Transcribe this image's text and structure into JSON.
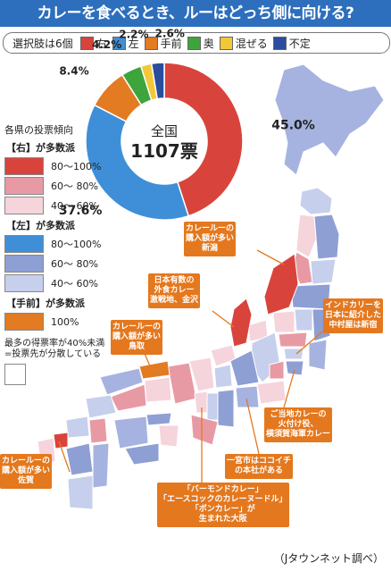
{
  "title": "カレーを食べるとき、ルーはどっち側に向ける?",
  "choices_lead": "選択肢は6個",
  "choices": [
    {
      "label": "右",
      "color": "#d8443c"
    },
    {
      "label": "左",
      "color": "#3f8fd8"
    },
    {
      "label": "手前",
      "color": "#e37b22"
    },
    {
      "label": "奥",
      "color": "#3ea43c"
    },
    {
      "label": "混ぜる",
      "color": "#f2c838"
    },
    {
      "label": "不定",
      "color": "#2a4d9e"
    }
  ],
  "chart_data": {
    "type": "pie",
    "center_label": "全国",
    "center_value": "1107票",
    "slices": [
      {
        "label": "右",
        "value": 45.0,
        "text": "45.0%",
        "color": "#d8443c"
      },
      {
        "label": "左",
        "value": 37.6,
        "text": "37.6%",
        "color": "#3f8fd8"
      },
      {
        "label": "手前",
        "value": 8.4,
        "text": "8.4%",
        "color": "#e37b22"
      },
      {
        "label": "奥",
        "value": 4.2,
        "text": "4.2%",
        "color": "#3ea43c"
      },
      {
        "label": "混ぜる",
        "value": 2.2,
        "text": "2.2%",
        "color": "#f2c838"
      },
      {
        "label": "不定",
        "value": 2.6,
        "text": "2.6%",
        "color": "#2a4d9e"
      }
    ]
  },
  "legend": {
    "heading": "各県の投票傾向",
    "groups": [
      {
        "title": "【右】が多数派",
        "rows": [
          {
            "label": "80〜100%",
            "color": "#d8443c"
          },
          {
            "label": "60〜 80%",
            "color": "#e89aa4"
          },
          {
            "label": "40〜 60%",
            "color": "#f6d4dc"
          }
        ]
      },
      {
        "title": "【左】が多数派",
        "rows": [
          {
            "label": "80〜100%",
            "color": "#3f8fd8"
          },
          {
            "label": "60〜 80%",
            "color": "#8e9fd4"
          },
          {
            "label": "40〜 60%",
            "color": "#c6cfec"
          }
        ]
      },
      {
        "title": "【手前】が多数派",
        "rows": [
          {
            "label": "100%",
            "color": "#e37b22"
          }
        ]
      }
    ],
    "footnote": "最多の得票率が40%未満=投票先が分散している"
  },
  "callouts": [
    {
      "id": "niigata",
      "text": "カレールーの\n購入額が多い\n新潟"
    },
    {
      "id": "kanazawa",
      "text": "日本有数の\n外食カレー\n激戦地、金沢"
    },
    {
      "id": "tottori",
      "text": "カレールーの\n購入額が多い\n鳥取"
    },
    {
      "id": "nakamuraya",
      "text": "インドカリーを\n日本に紹介した\n中村屋は新宿"
    },
    {
      "id": "yokosuka",
      "text": "ご当地カレーの\n火付け役、\n横須賀海軍カレー"
    },
    {
      "id": "ichinomiya",
      "text": "一宮市はココイチ\nの本社がある"
    },
    {
      "id": "saga",
      "text": "カレールーの\n購入額が多い\n佐賀"
    },
    {
      "id": "osaka",
      "text": "「バーモンドカレー」\n「エースコックのカレーヌードル」\n「ボンカレー」が\n生まれた大阪"
    }
  ],
  "credit": "（Jタウンネット調べ）"
}
